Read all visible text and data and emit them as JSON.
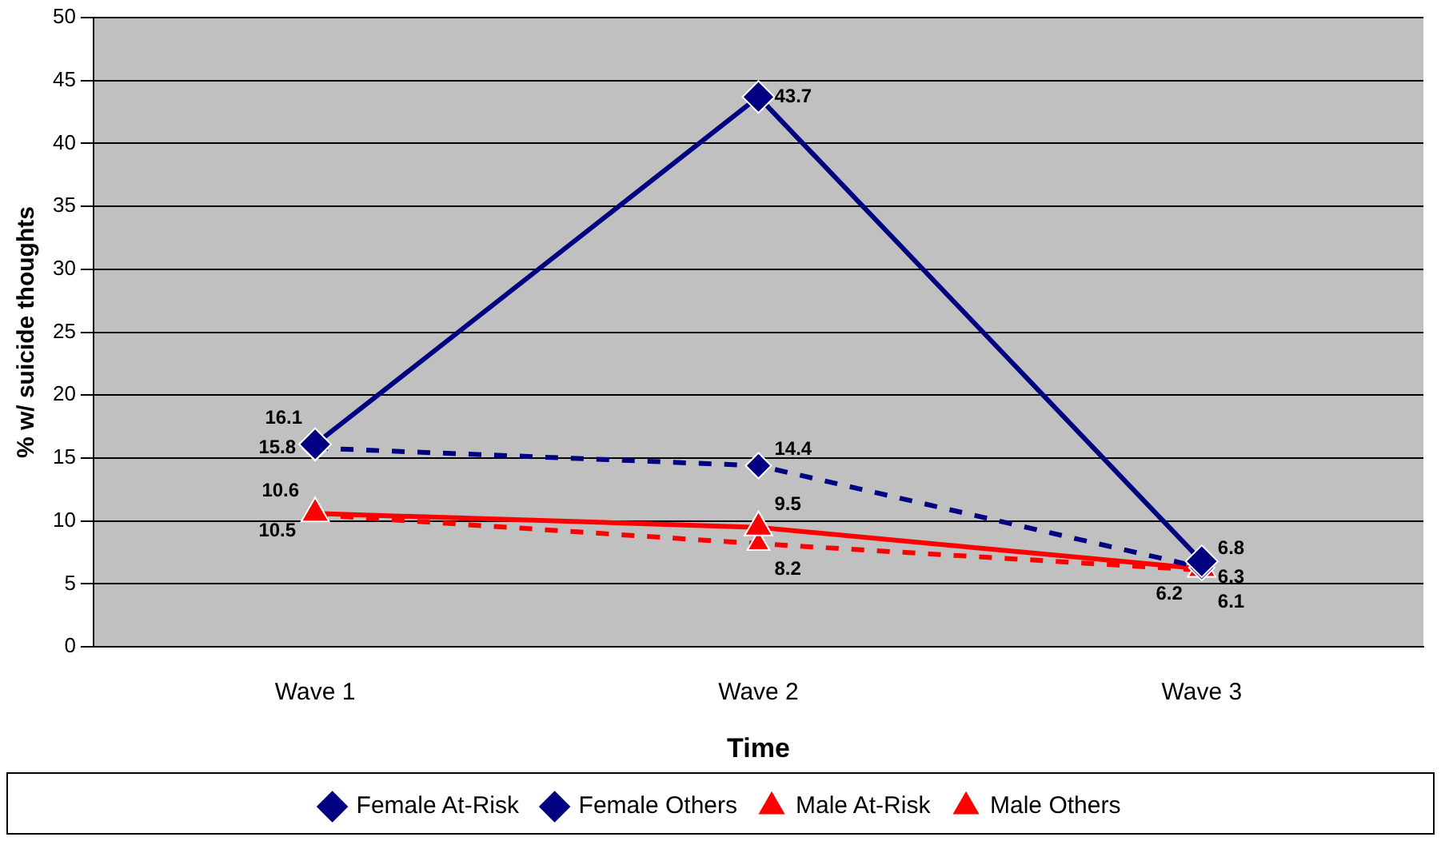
{
  "chart_data": {
    "type": "line",
    "xlabel": "Time",
    "ylabel": "% w/ suicide thoughts",
    "categories": [
      "Wave 1",
      "Wave 2",
      "Wave 3"
    ],
    "series": [
      {
        "name": "Female At-Risk",
        "color": "#000080",
        "values": [
          16.1,
          43.7,
          6.8
        ],
        "marker": "diamond",
        "line_style": "solid"
      },
      {
        "name": "Female Others",
        "color": "#000080",
        "values": [
          15.8,
          14.4,
          6.3
        ],
        "marker": "diamond",
        "line_style": "dashed"
      },
      {
        "name": "Male At-Risk",
        "color": "#ff0000",
        "values": [
          10.6,
          9.5,
          6.2
        ],
        "marker": "triangle",
        "line_style": "solid"
      },
      {
        "name": "Male Others",
        "color": "#ff0000",
        "values": [
          10.5,
          8.2,
          6.1
        ],
        "marker": "triangle",
        "line_style": "dashed"
      }
    ],
    "ylim": [
      0,
      50
    ],
    "yticks": [
      0,
      5,
      10,
      15,
      20,
      25,
      30,
      35,
      40,
      45,
      50
    ],
    "grid": "y",
    "legend": "bottom",
    "data_labels": true
  }
}
